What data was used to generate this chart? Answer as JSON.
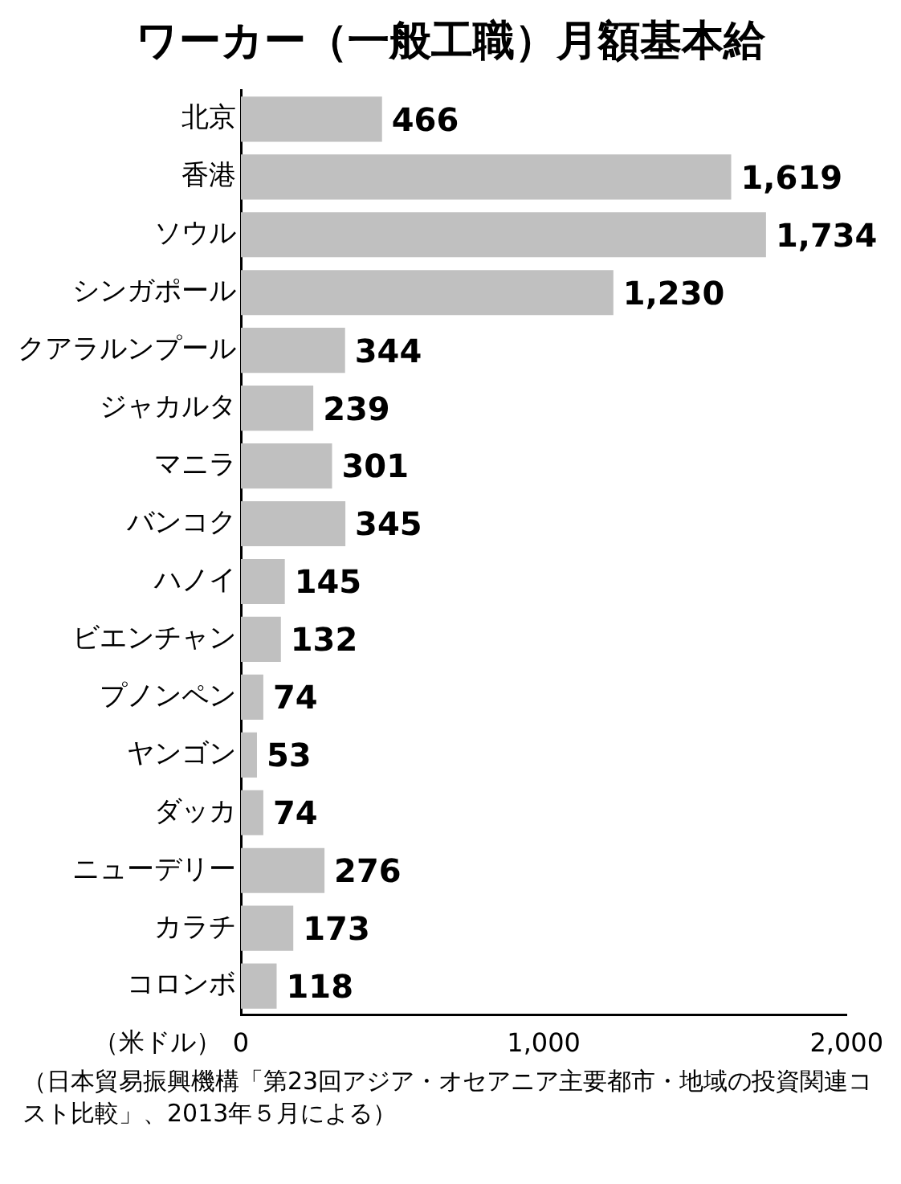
{
  "chart_data": {
    "type": "bar",
    "orientation": "horizontal",
    "title": "ワーカー（一般工職）月額基本給",
    "xlabel": "（米ドル）",
    "categories": [
      "北京",
      "香港",
      "ソウル",
      "シンガポール",
      "クアラルンプール",
      "ジャカルタ",
      "マニラ",
      "バンコク",
      "ハノイ",
      "ビエンチャン",
      "プノンペン",
      "ヤンゴン",
      "ダッカ",
      "ニューデリー",
      "カラチ",
      "コロンボ"
    ],
    "values": [
      466,
      1619,
      1734,
      1230,
      344,
      239,
      301,
      345,
      145,
      132,
      74,
      53,
      74,
      276,
      173,
      118
    ],
    "value_labels": [
      "466",
      "1,619",
      "1,734",
      "1,230",
      "344",
      "239",
      "301",
      "345",
      "145",
      "132",
      "74",
      "53",
      "74",
      "276",
      "173",
      "118"
    ],
    "color": "#c0c0c0",
    "xlim": [
      0,
      2000
    ],
    "xticks": [
      0,
      {
        "value": 1000,
        "label": "1,000"
      },
      {
        "value": 2000,
        "label": "2,000"
      }
    ],
    "annotations": [
      "（日本貿易振興機構「第23回アジア・オセアニア主要都市・地域の投資関連コスト比較」、2013年５月による）"
    ]
  }
}
